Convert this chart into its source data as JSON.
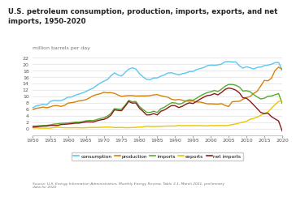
{
  "title": "U.S. petroleum consumption, production, imports, exports, and net\nimports, 1950-2020",
  "ylabel": "million barrels per day",
  "years": [
    1950,
    1951,
    1952,
    1953,
    1954,
    1955,
    1956,
    1957,
    1958,
    1959,
    1960,
    1961,
    1962,
    1963,
    1964,
    1965,
    1966,
    1967,
    1968,
    1969,
    1970,
    1971,
    1972,
    1973,
    1974,
    1975,
    1976,
    1977,
    1978,
    1979,
    1980,
    1981,
    1982,
    1983,
    1984,
    1985,
    1986,
    1987,
    1988,
    1989,
    1990,
    1991,
    1992,
    1993,
    1994,
    1995,
    1996,
    1997,
    1998,
    1999,
    2000,
    2001,
    2002,
    2003,
    2004,
    2005,
    2006,
    2007,
    2008,
    2009,
    2010,
    2011,
    2012,
    2013,
    2014,
    2015,
    2016,
    2017,
    2018,
    2019,
    2020
  ],
  "consumption": [
    6.46,
    7.07,
    7.29,
    7.61,
    7.38,
    8.46,
    8.81,
    8.74,
    8.71,
    9.17,
    9.8,
    9.84,
    10.4,
    10.74,
    11.08,
    11.51,
    12.12,
    12.56,
    13.39,
    14.14,
    14.7,
    15.21,
    16.37,
    17.31,
    16.65,
    16.32,
    17.46,
    18.43,
    18.85,
    18.51,
    17.06,
    16.06,
    15.3,
    15.23,
    15.73,
    15.73,
    16.28,
    16.67,
    17.28,
    17.33,
    16.99,
    16.71,
    17.03,
    17.24,
    17.72,
    17.72,
    18.31,
    18.62,
    18.92,
    19.52,
    19.7,
    19.65,
    19.76,
    20.03,
    20.73,
    20.8,
    20.69,
    20.68,
    19.5,
    18.77,
    19.18,
    18.88,
    18.49,
    18.96,
    19.11,
    19.53,
    19.69,
    19.96,
    20.46,
    20.54,
    18.12
  ],
  "production": [
    5.91,
    6.35,
    6.47,
    6.73,
    6.49,
    6.78,
    7.15,
    7.17,
    6.92,
    7.26,
    7.96,
    8.09,
    8.28,
    8.64,
    8.78,
    9.01,
    9.58,
    10.22,
    10.6,
    10.83,
    11.3,
    11.16,
    11.19,
    10.95,
    10.46,
    10.01,
    10.19,
    10.27,
    10.27,
    10.14,
    10.17,
    10.18,
    10.2,
    10.25,
    10.51,
    10.58,
    10.23,
    10.0,
    9.76,
    9.16,
    8.91,
    9.08,
    8.87,
    8.58,
    8.54,
    8.63,
    8.3,
    8.27,
    8.01,
    7.73,
    7.73,
    7.67,
    7.63,
    7.78,
    7.24,
    6.9,
    8.37,
    8.46,
    8.51,
    9.14,
    9.69,
    9.98,
    10.93,
    11.64,
    13.25,
    14.95,
    14.83,
    15.66,
    18.02,
    19.07,
    18.4
  ],
  "imports": [
    0.85,
    0.86,
    0.96,
    1.03,
    1.05,
    1.24,
    1.44,
    1.55,
    1.7,
    1.74,
    1.81,
    1.92,
    2.08,
    2.07,
    2.23,
    2.47,
    2.57,
    2.54,
    2.84,
    3.17,
    3.42,
    3.93,
    4.74,
    6.26,
    6.11,
    6.06,
    7.31,
    8.81,
    8.36,
    8.46,
    6.91,
    6.0,
    5.11,
    5.05,
    5.44,
    5.07,
    6.22,
    6.68,
    7.4,
    8.06,
    8.02,
    7.63,
    7.89,
    8.62,
    9.0,
    8.83,
    9.45,
    10.16,
    10.71,
    11.19,
    11.46,
    11.87,
    11.53,
    12.26,
    13.15,
    13.71,
    13.71,
    13.47,
    12.92,
    11.69,
    11.79,
    11.48,
    10.6,
    9.86,
    9.24,
    9.45,
    10.05,
    10.14,
    10.53,
    10.91,
    7.86
  ],
  "exports": [
    0.3,
    0.26,
    0.22,
    0.2,
    0.19,
    0.2,
    0.38,
    0.52,
    0.38,
    0.34,
    0.32,
    0.33,
    0.34,
    0.32,
    0.29,
    0.34,
    0.4,
    0.43,
    0.41,
    0.44,
    0.52,
    0.56,
    0.52,
    0.39,
    0.41,
    0.44,
    0.34,
    0.36,
    0.41,
    0.47,
    0.54,
    0.59,
    0.82,
    0.74,
    0.72,
    0.78,
    0.79,
    0.84,
    0.87,
    0.87,
    0.86,
    1.06,
    0.95,
    1.01,
    0.97,
    1.02,
    0.97,
    1.0,
    0.93,
    0.91,
    1.04,
    0.98,
    1.03,
    1.02,
    0.97,
    1.1,
    1.32,
    1.5,
    1.8,
    2.08,
    2.34,
    2.94,
    3.2,
    3.62,
    4.18,
    4.73,
    5.18,
    6.36,
    7.46,
    8.47,
    8.51
  ],
  "net_imports": [
    0.55,
    0.6,
    0.74,
    0.83,
    0.86,
    1.04,
    1.06,
    1.03,
    1.32,
    1.4,
    1.49,
    1.59,
    1.74,
    1.75,
    1.94,
    2.13,
    2.17,
    2.11,
    2.43,
    2.73,
    2.9,
    3.37,
    4.22,
    5.87,
    5.7,
    5.62,
    6.97,
    8.45,
    7.95,
    8.0,
    6.37,
    5.41,
    4.29,
    4.31,
    4.72,
    4.29,
    5.43,
    5.84,
    6.53,
    7.19,
    7.16,
    6.57,
    6.94,
    7.61,
    8.03,
    7.81,
    8.48,
    9.16,
    9.78,
    10.28,
    10.42,
    10.89,
    10.5,
    11.24,
    12.18,
    12.61,
    12.39,
    11.97,
    11.12,
    9.61,
    9.45,
    8.54,
    7.4,
    6.24,
    5.06,
    4.72,
    4.87,
    3.78,
    3.07,
    2.44,
    -0.65
  ],
  "colors": {
    "consumption": "#5bc8f0",
    "production": "#d4820a",
    "imports": "#5aaa32",
    "exports": "#e8c800",
    "net_imports": "#8b1a1a"
  },
  "ylim": [
    -2,
    22
  ],
  "yticks": [
    0,
    2,
    4,
    6,
    8,
    10,
    12,
    14,
    16,
    18,
    20,
    22
  ],
  "xlim": [
    1950,
    2020
  ],
  "xticks": [
    1950,
    1955,
    1960,
    1965,
    1970,
    1975,
    1980,
    1985,
    1990,
    1995,
    2000,
    2005,
    2010,
    2015,
    2020
  ],
  "source_text": "Source: U.S. Energy Information Administration, Monthly Energy Review, Table 3.1, March 2021, preliminary\ndata for 2020",
  "bg_color": "#ffffff",
  "grid_color": "#e0e0e0",
  "legend_labels": [
    "consumption",
    "production",
    "imports",
    "exports",
    "net imports"
  ]
}
